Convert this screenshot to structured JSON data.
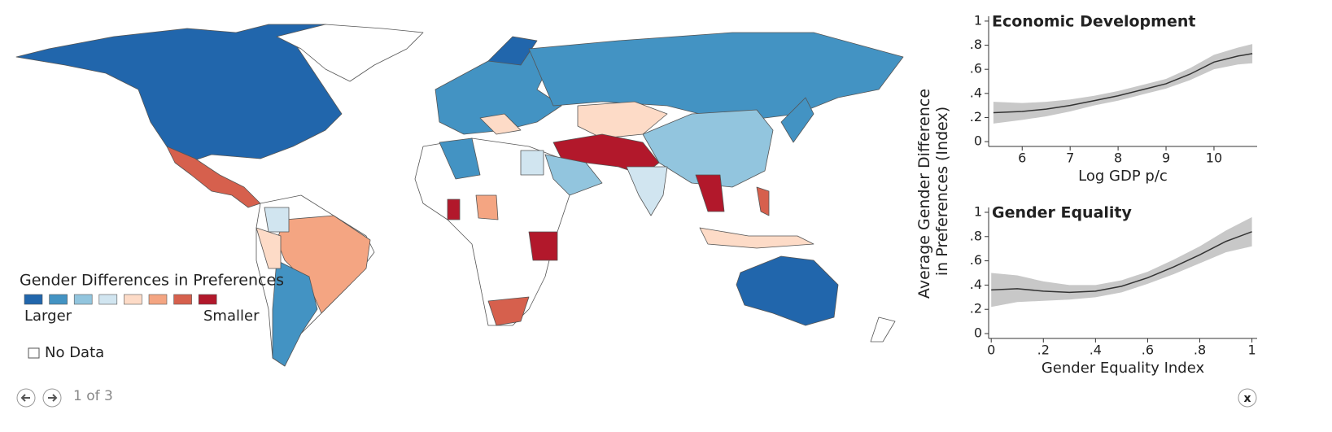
{
  "map": {
    "legend_title": "Gender Differences in Preferences",
    "legend_colors": [
      "#2166ac",
      "#4393c3",
      "#92c5de",
      "#d1e5f0",
      "#fddbc7",
      "#f4a582",
      "#d6604d",
      "#b2182b"
    ],
    "low_label": "Larger",
    "high_label": "Smaller",
    "no_data_label": "No Data"
  },
  "y_axis_label_lines": [
    "Average Gender Difference",
    "in Preferences (Index)"
  ],
  "chart_data": [
    {
      "type": "line",
      "title": "Economic Development",
      "x_label": "Log GDP p/c",
      "color": "#333333",
      "band_color": "#c8c8c8",
      "x": [
        5.4,
        6,
        6.5,
        7,
        7.5,
        8,
        8.5,
        9,
        9.5,
        10,
        10.5,
        10.8
      ],
      "values": [
        0.24,
        0.25,
        0.27,
        0.3,
        0.34,
        0.38,
        0.43,
        0.48,
        0.56,
        0.66,
        0.71,
        0.73
      ],
      "lower": [
        0.15,
        0.18,
        0.21,
        0.25,
        0.3,
        0.34,
        0.39,
        0.44,
        0.51,
        0.6,
        0.64,
        0.65
      ],
      "upper": [
        0.33,
        0.32,
        0.33,
        0.35,
        0.38,
        0.42,
        0.47,
        0.52,
        0.61,
        0.72,
        0.78,
        0.81
      ],
      "xlim": [
        5.3,
        10.9
      ],
      "xticks": [
        6,
        7,
        8,
        9,
        10
      ],
      "ylim": [
        -0.04,
        1.04
      ],
      "yticks": [
        0,
        {
          "value": 0.2,
          "label": ".2"
        },
        {
          "value": 0.4,
          "label": ".4"
        },
        {
          "value": 0.6,
          "label": ".6"
        },
        {
          "value": 0.8,
          "label": ".8"
        },
        1
      ]
    },
    {
      "type": "line",
      "title": "Gender Equality",
      "x_label": "Gender Equality Index",
      "color": "#333333",
      "band_color": "#c8c8c8",
      "x": [
        0,
        0.1,
        0.2,
        0.3,
        0.4,
        0.5,
        0.6,
        0.7,
        0.8,
        0.9,
        1
      ],
      "values": [
        0.36,
        0.37,
        0.35,
        0.34,
        0.35,
        0.39,
        0.46,
        0.55,
        0.65,
        0.76,
        0.84
      ],
      "lower": [
        0.22,
        0.26,
        0.27,
        0.28,
        0.3,
        0.34,
        0.41,
        0.49,
        0.58,
        0.67,
        0.72
      ],
      "upper": [
        0.5,
        0.48,
        0.43,
        0.4,
        0.4,
        0.44,
        0.51,
        0.61,
        0.72,
        0.85,
        0.96
      ],
      "xlim": [
        -0.01,
        1.02
      ],
      "xticks": [
        0,
        {
          "value": 0.2,
          "label": ".2"
        },
        {
          "value": 0.4,
          "label": ".4"
        },
        {
          "value": 0.6,
          "label": ".6"
        },
        {
          "value": 0.8,
          "label": ".8"
        },
        1
      ],
      "ylim": [
        -0.04,
        1.04
      ],
      "yticks": [
        0,
        {
          "value": 0.2,
          "label": ".2"
        },
        {
          "value": 0.4,
          "label": ".4"
        },
        {
          "value": 0.6,
          "label": ".6"
        },
        {
          "value": 0.8,
          "label": ".8"
        },
        1
      ]
    }
  ],
  "pager": "1 of 3",
  "close_label": "x"
}
